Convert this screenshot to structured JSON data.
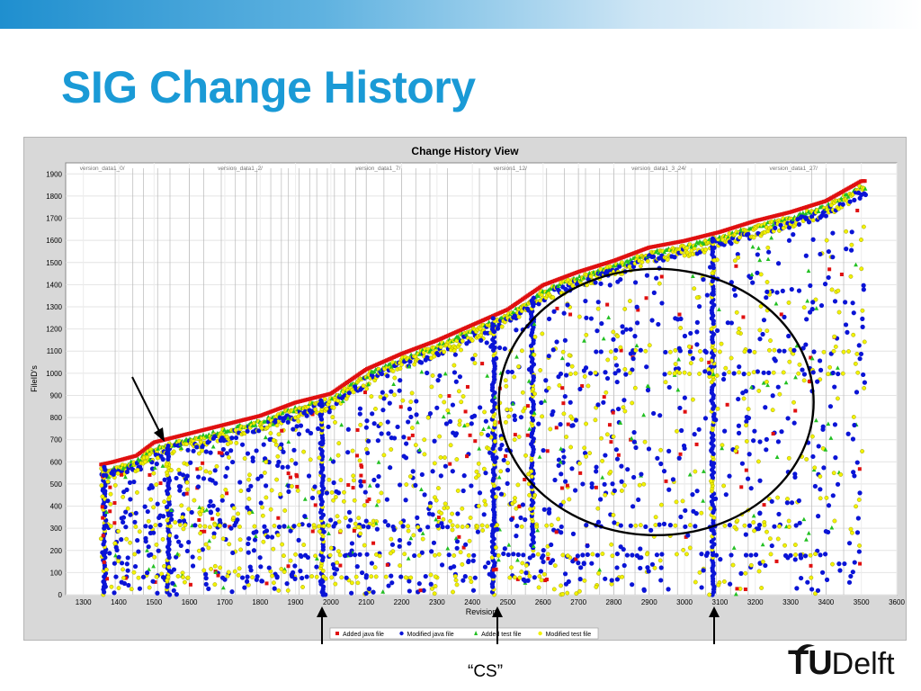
{
  "slide": {
    "title": "SIG Change History",
    "caption": "“CS”",
    "logo_text": "TUDelft"
  },
  "colors": {
    "title": "#1a9ad6",
    "added_java": "#e01010",
    "modified_java": "#0a14d6",
    "added_test": "#22c022",
    "modified_test": "#f2f200"
  },
  "chart_data": {
    "type": "scatter",
    "title": "Change History View",
    "xlabel": "Revision",
    "ylabel": "FileID's",
    "xlim": [
      1250,
      3600
    ],
    "ylim": [
      0,
      1950
    ],
    "x_ticks": [
      1300,
      1400,
      1500,
      1600,
      1700,
      1800,
      1900,
      2000,
      2100,
      2200,
      2300,
      2400,
      2500,
      2600,
      2700,
      2800,
      2900,
      3000,
      3100,
      3200,
      3300,
      3400,
      3500,
      3600
    ],
    "y_ticks": [
      0,
      100,
      200,
      300,
      400,
      500,
      600,
      700,
      800,
      900,
      1000,
      1100,
      1200,
      1300,
      1400,
      1500,
      1600,
      1700,
      1800,
      1900
    ],
    "grid": true,
    "legend_position": "bottom",
    "series": [
      {
        "name": "Added java file",
        "marker": "square",
        "color": "#e01010"
      },
      {
        "name": "Modified java file",
        "marker": "circle",
        "color": "#0a14d6"
      },
      {
        "name": "Added test file",
        "marker": "triangle",
        "color": "#22c022"
      },
      {
        "name": "Modified test file",
        "marker": "circle-small",
        "color": "#f2f200"
      }
    ],
    "frontier": [
      [
        1350,
        580
      ],
      [
        1380,
        590
      ],
      [
        1450,
        620
      ],
      [
        1500,
        680
      ],
      [
        1600,
        720
      ],
      [
        1700,
        760
      ],
      [
        1800,
        800
      ],
      [
        1900,
        860
      ],
      [
        2000,
        900
      ],
      [
        2100,
        1010
      ],
      [
        2200,
        1080
      ],
      [
        2300,
        1140
      ],
      [
        2400,
        1210
      ],
      [
        2500,
        1280
      ],
      [
        2600,
        1390
      ],
      [
        2700,
        1450
      ],
      [
        2800,
        1500
      ],
      [
        2900,
        1560
      ],
      [
        3000,
        1590
      ],
      [
        3100,
        1630
      ],
      [
        3200,
        1680
      ],
      [
        3300,
        1720
      ],
      [
        3400,
        1770
      ],
      [
        3500,
        1860
      ]
    ],
    "version_lines": [
      1390,
      1440,
      1470,
      1510,
      1545,
      1600,
      1640,
      1690,
      1730,
      1760,
      1790,
      1830,
      1860,
      1880,
      1910,
      1940,
      1960,
      1990,
      2010,
      2040,
      2070,
      2100,
      2150,
      2200,
      2240,
      2280,
      2330,
      2420,
      2470,
      2510,
      2550,
      2610,
      2660,
      2700,
      2720,
      2760,
      2800,
      2830,
      2860,
      2900,
      2940,
      2980,
      3020,
      3060,
      3090,
      3130,
      3180,
      3360,
      3400,
      3450
    ],
    "dense_columns": [
      {
        "x": 1360,
        "y0": 0,
        "y1": 580
      },
      {
        "x": 1540,
        "y0": 0,
        "y1": 680
      },
      {
        "x": 1975,
        "y0": 0,
        "y1": 880
      },
      {
        "x": 2460,
        "y0": 0,
        "y1": 1260
      },
      {
        "x": 3080,
        "y0": 0,
        "y1": 1620
      },
      {
        "x": 2570,
        "y0": 200,
        "y1": 1350
      }
    ],
    "annotations": {
      "version_labels": [
        "version_data1_0/",
        "version_data1_2/",
        "version_data1_7/",
        "version1_12/",
        "version_data1_3_24/",
        "version_data1_27/"
      ]
    }
  }
}
